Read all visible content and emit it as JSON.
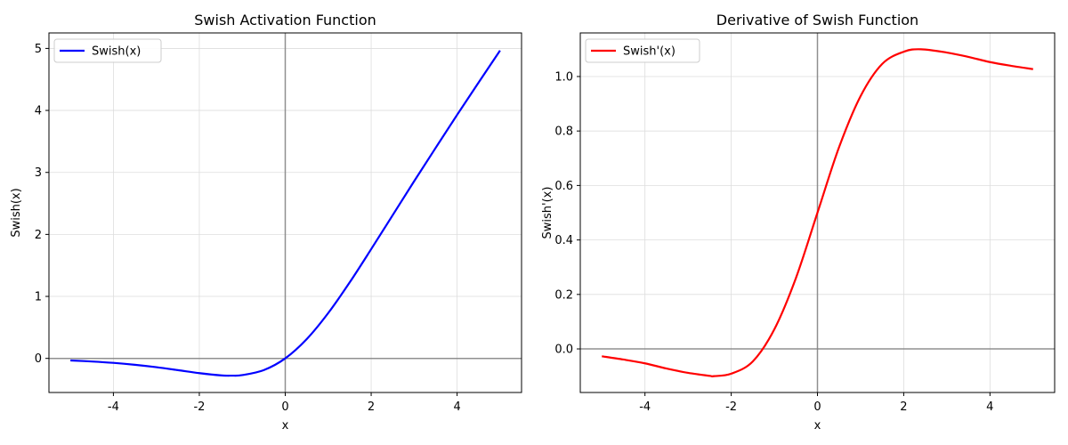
{
  "colors": {
    "swish": "#0000ff",
    "derivative": "#ff0000",
    "reference_line": "#808080",
    "grid": "#dddddd"
  },
  "chart_data": [
    {
      "type": "line",
      "title": "Swish Activation Function",
      "xlabel": "x",
      "ylabel": "Swish(x)",
      "xlim": [
        -5.5,
        5.5
      ],
      "ylim": [
        -0.55,
        5.25
      ],
      "xticks": [
        -4,
        -2,
        0,
        2,
        4
      ],
      "xtick_labels": [
        "-4",
        "-2",
        "0",
        "2",
        "4"
      ],
      "yticks": [
        0,
        1,
        2,
        3,
        4,
        5
      ],
      "ytick_labels": [
        "0",
        "1",
        "2",
        "3",
        "4",
        "5"
      ],
      "grid": true,
      "legend": "top-left",
      "reference_lines": {
        "x": 0,
        "y": 0
      },
      "series": [
        {
          "name": "Swish(x)",
          "color": "#0000ff",
          "x": [
            -5,
            -4.5,
            -4,
            -3.5,
            -3,
            -2.5,
            -2,
            -1.5,
            -1.25,
            -1,
            -0.5,
            0,
            0.5,
            1,
            1.5,
            2,
            2.5,
            3,
            3.5,
            4,
            4.5,
            5
          ],
          "y": [
            -0.033,
            -0.05,
            -0.072,
            -0.103,
            -0.142,
            -0.189,
            -0.238,
            -0.274,
            -0.278,
            -0.269,
            -0.189,
            0,
            0.311,
            0.731,
            1.226,
            1.762,
            2.31,
            2.858,
            3.395,
            3.928,
            4.45,
            4.967
          ]
        }
      ]
    },
    {
      "type": "line",
      "title": "Derivative of Swish Function",
      "xlabel": "x",
      "ylabel": "Swish'(x)",
      "xlim": [
        -5.5,
        5.5
      ],
      "ylim": [
        -0.16,
        1.16
      ],
      "xticks": [
        -4,
        -2,
        0,
        2,
        4
      ],
      "xtick_labels": [
        "-4",
        "-2",
        "0",
        "2",
        "4"
      ],
      "yticks": [
        0,
        0.2,
        0.4,
        0.6,
        0.8,
        1.0
      ],
      "ytick_labels": [
        "0.0",
        "0.2",
        "0.4",
        "0.6",
        "0.8",
        "1.0"
      ],
      "grid": true,
      "legend": "top-left",
      "reference_lines": {
        "x": 0,
        "y": 0
      },
      "series": [
        {
          "name": "Swish'(x)",
          "color": "#ff0000",
          "x": [
            -5,
            -4.5,
            -4,
            -3.5,
            -3,
            -2.5,
            -2.4,
            -2,
            -1.5,
            -1,
            -0.5,
            0,
            0.5,
            1,
            1.5,
            2,
            2.4,
            3,
            3.5,
            4,
            4.5,
            5
          ],
          "y": [
            -0.027,
            -0.039,
            -0.053,
            -0.072,
            -0.088,
            -0.099,
            -0.1,
            -0.091,
            -0.046,
            0.072,
            0.26,
            0.5,
            0.74,
            0.928,
            1.046,
            1.091,
            1.1,
            1.088,
            1.072,
            1.053,
            1.039,
            1.027
          ]
        }
      ]
    }
  ]
}
